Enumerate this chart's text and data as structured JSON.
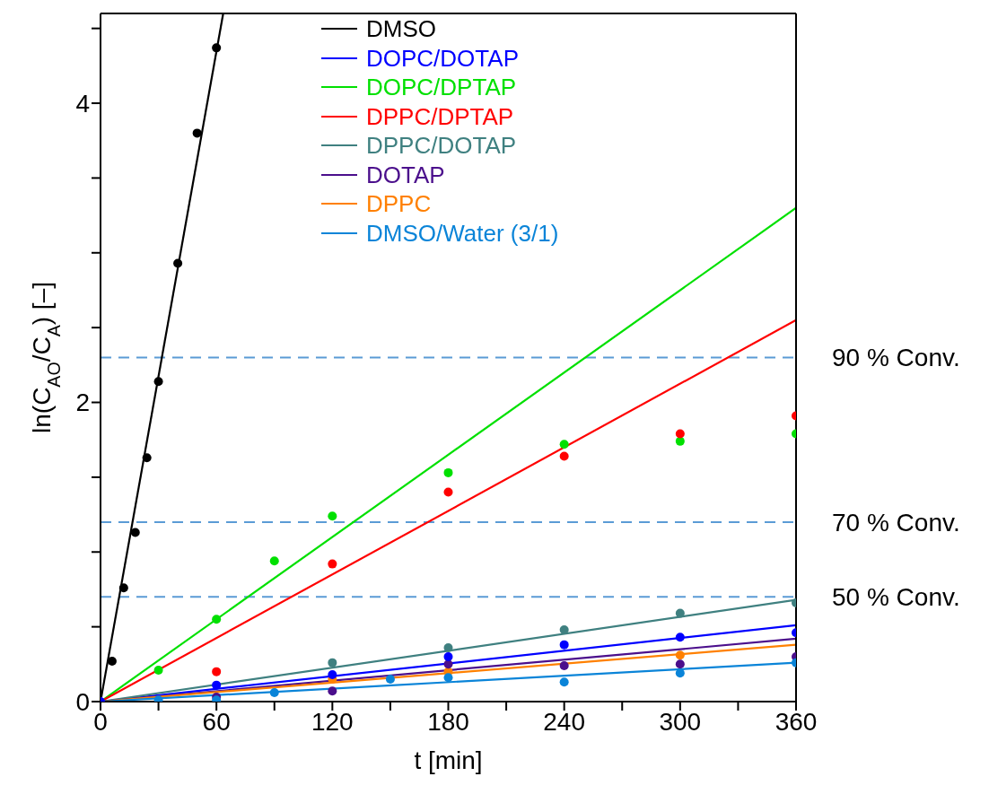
{
  "chart_data": {
    "type": "scatter",
    "xlabel": "t [min]",
    "ylabel": "ln(C$_{AO}$/C$_{A}$) [–]",
    "xlim": [
      0,
      360
    ],
    "xticks": [
      0,
      {
        "value": 30,
        "label": null
      },
      60,
      {
        "value": 90,
        "label": null
      },
      120,
      {
        "value": 150,
        "label": null
      },
      180,
      {
        "value": 210,
        "label": null
      },
      240,
      {
        "value": 270,
        "label": null
      },
      300,
      {
        "value": 330,
        "label": null
      },
      360
    ],
    "ylim": [
      0,
      4.6
    ],
    "yticks": [
      0,
      {
        "value": 0.5,
        "label": null
      },
      {
        "value": 1,
        "label": null
      },
      {
        "value": 1.5,
        "label": null
      },
      2,
      {
        "value": 2.5,
        "label": null
      },
      {
        "value": 3,
        "label": null
      },
      {
        "value": 3.5,
        "label": null
      },
      4,
      {
        "value": 4.5,
        "label": null
      }
    ],
    "grid": false,
    "legend": "top",
    "ref_lines": [
      {
        "axis": "y",
        "value": 2.3,
        "label": "90 % Conv.",
        "color": "#5b9bd5",
        "line_style": "dashed"
      },
      {
        "axis": "y",
        "value": 1.2,
        "label": "70 % Conv.",
        "color": "#5b9bd5",
        "line_style": "dashed"
      },
      {
        "axis": "y",
        "value": 0.7,
        "label": "50 % Conv.",
        "color": "#5b9bd5",
        "line_style": "dashed"
      }
    ],
    "series": [
      {
        "type": "line",
        "name": "DMSO",
        "color": "#000000",
        "x": [
          0,
          63.5
        ],
        "values": [
          0,
          4.6
        ]
      },
      {
        "type": "line",
        "name": "DOPC/DOTAP",
        "color": "#0000ff",
        "x": [
          0,
          360
        ],
        "values": [
          0,
          0.51
        ]
      },
      {
        "type": "line",
        "name": "DOPC/DPTAP",
        "color": "#00e000",
        "x": [
          0,
          360
        ],
        "values": [
          0,
          3.3
        ]
      },
      {
        "type": "line",
        "name": "DPPC/DPTAP",
        "color": "#ff0000",
        "x": [
          0,
          360
        ],
        "values": [
          0,
          2.55
        ]
      },
      {
        "type": "line",
        "name": "DPPC/DOTAP",
        "color": "#3f8080",
        "x": [
          0,
          360
        ],
        "values": [
          0,
          0.68
        ]
      },
      {
        "type": "line",
        "name": "DOTAP",
        "color": "#4b0f8c",
        "x": [
          0,
          360
        ],
        "values": [
          0,
          0.42
        ]
      },
      {
        "type": "line",
        "name": "DPPC",
        "color": "#ff8000",
        "x": [
          0,
          360
        ],
        "values": [
          0,
          0.38
        ]
      },
      {
        "type": "line",
        "name": "DMSO/Water (3/1)",
        "color": "#0a84d8",
        "x": [
          0,
          360
        ],
        "values": [
          0,
          0.26
        ]
      },
      {
        "color": "#000000",
        "x": [
          6,
          12,
          18,
          24,
          30,
          40,
          50,
          60
        ],
        "values": [
          0.27,
          0.76,
          1.13,
          1.63,
          2.14,
          2.93,
          3.8,
          4.37
        ]
      },
      {
        "color": "#00e000",
        "x": [
          30,
          60,
          90,
          120,
          180,
          240,
          300,
          360
        ],
        "values": [
          0.21,
          0.55,
          0.94,
          1.24,
          1.53,
          1.72,
          1.74,
          1.79
        ]
      },
      {
        "color": "#ff0000",
        "x": [
          60,
          120,
          180,
          240,
          300,
          360
        ],
        "values": [
          0.2,
          0.92,
          1.4,
          1.64,
          1.79,
          1.91
        ]
      },
      {
        "color": "#3f8080",
        "x": [
          120,
          180,
          240,
          300,
          360
        ],
        "values": [
          0.26,
          0.36,
          0.48,
          0.59,
          0.66
        ]
      },
      {
        "color": "#ff8000",
        "x": [
          120,
          180,
          300
        ],
        "values": [
          0.15,
          0.2,
          0.31
        ]
      },
      {
        "color": "#4b0f8c",
        "x": [
          60,
          120,
          180,
          240,
          300,
          360
        ],
        "values": [
          0.03,
          0.07,
          0.25,
          0.24,
          0.25,
          0.3
        ]
      },
      {
        "color": "#0a84d8",
        "x": [
          30,
          60,
          90,
          150,
          180,
          240,
          300,
          360
        ],
        "values": [
          0.01,
          0.01,
          0.06,
          0.15,
          0.16,
          0.13,
          0.19,
          0.26
        ]
      },
      {
        "color": "#0000ff",
        "x": [
          0,
          60,
          120,
          180,
          240,
          300,
          360
        ],
        "values": [
          0,
          0.11,
          0.18,
          0.3,
          0.38,
          0.43,
          0.46
        ]
      }
    ]
  }
}
